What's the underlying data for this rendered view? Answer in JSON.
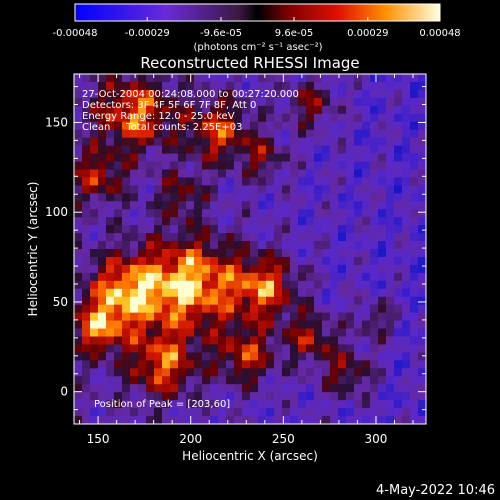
{
  "chart_data": {
    "type": "heatmap",
    "title": "Reconstructed RHESSI Image",
    "xlabel": "Heliocentric X (arcsec)",
    "ylabel": "Heliocentric Y (arcsec)",
    "xlim": [
      137,
      327
    ],
    "ylim": [
      -18,
      177
    ],
    "x_ticks": [
      150,
      200,
      250,
      300
    ],
    "y_ticks": [
      0,
      50,
      100,
      150
    ],
    "colorbar": {
      "range": [
        -0.00048,
        0.00048
      ],
      "tick_values": [
        -0.00048,
        -0.00029,
        -9.6e-05,
        9.6e-05,
        0.00029,
        0.00048
      ],
      "tick_labels": [
        "-0.00048",
        "-0.00029",
        "-9.6e-05",
        "9.6e-05",
        "0.00029",
        "0.00048"
      ],
      "units": "(photons cm⁻² s⁻¹ asec⁻²)"
    },
    "annotations": [
      "27-Oct-2004 00:24:08.000 to 00:27:20.000",
      "Detectors: 3F 4F 5F 6F 7F 8F, Att 0",
      "Energy Range: 12.0 - 25.0 keV",
      "Clean     Total counts: 2.25E+03"
    ],
    "peak_label": "Position of Peak = [203,60]",
    "peak": {
      "x": 203,
      "y": 60
    }
  },
  "footer_date": "4-May-2022 10:46"
}
